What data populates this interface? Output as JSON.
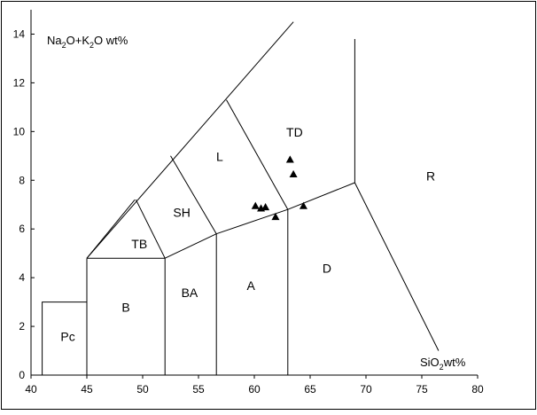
{
  "chart_data": {
    "type": "scatter",
    "title": "",
    "xlabel": {
      "main": "SiO",
      "sub": "2",
      "rest": "wt%"
    },
    "ylabel": {
      "p1": "Na",
      "s1": "2",
      "p2": "O+K",
      "s2": "2",
      "p3": "O wt%"
    },
    "xlim": [
      40,
      80
    ],
    "ylim": [
      0,
      15
    ],
    "x_ticks": [
      40,
      45,
      50,
      55,
      60,
      65,
      70,
      75,
      80
    ],
    "y_ticks": [
      0,
      2,
      4,
      6,
      8,
      10,
      12,
      14
    ],
    "grid": false,
    "marker": "triangle",
    "marker_color": "#000000",
    "points": [
      {
        "x": 60.1,
        "y": 6.95
      },
      {
        "x": 60.6,
        "y": 6.85
      },
      {
        "x": 61.0,
        "y": 6.9
      },
      {
        "x": 61.9,
        "y": 6.5
      },
      {
        "x": 63.2,
        "y": 8.85
      },
      {
        "x": 63.5,
        "y": 8.25
      },
      {
        "x": 64.4,
        "y": 6.95
      }
    ],
    "boundaries": [
      [
        [
          41,
          0
        ],
        [
          41,
          3
        ],
        [
          45,
          3
        ]
      ],
      [
        [
          45,
          0
        ],
        [
          45,
          4.8
        ]
      ],
      [
        [
          45,
          4.8
        ],
        [
          52,
          4.8
        ],
        [
          52,
          0
        ]
      ],
      [
        [
          45,
          4.8
        ],
        [
          49.3,
          7.2
        ]
      ],
      [
        [
          49.4,
          7.2
        ],
        [
          52,
          4.8
        ]
      ],
      [
        [
          52,
          4.8
        ],
        [
          56.6,
          5.8
        ]
      ],
      [
        [
          56.6,
          5.8
        ],
        [
          56.6,
          0
        ]
      ],
      [
        [
          56.6,
          5.8
        ],
        [
          52.5,
          9.0
        ]
      ],
      [
        [
          56.6,
          5.8
        ],
        [
          63,
          6.8
        ]
      ],
      [
        [
          63,
          6.8
        ],
        [
          63,
          0
        ]
      ],
      [
        [
          63,
          6.8
        ],
        [
          57.5,
          11.3
        ]
      ],
      [
        [
          63,
          6.8
        ],
        [
          69,
          7.9
        ]
      ],
      [
        [
          69,
          7.9
        ],
        [
          69,
          13.8
        ]
      ],
      [
        [
          69,
          7.9
        ],
        [
          76.5,
          1.0
        ]
      ],
      [
        [
          45,
          4.8
        ],
        [
          63.5,
          14.5
        ]
      ]
    ],
    "fields": [
      {
        "label": "Pc",
        "x": 43.3,
        "y": 1.4
      },
      {
        "label": "B",
        "x": 48.5,
        "y": 2.6
      },
      {
        "label": "BA",
        "x": 54.2,
        "y": 3.2
      },
      {
        "label": "A",
        "x": 59.7,
        "y": 3.5
      },
      {
        "label": "D",
        "x": 66.5,
        "y": 4.2
      },
      {
        "label": "TB",
        "x": 49.7,
        "y": 5.2
      },
      {
        "label": "SH",
        "x": 53.5,
        "y": 6.5
      },
      {
        "label": "L",
        "x": 56.9,
        "y": 8.8
      },
      {
        "label": "TD",
        "x": 63.6,
        "y": 9.8
      },
      {
        "label": "R",
        "x": 75.8,
        "y": 8.0
      }
    ]
  }
}
